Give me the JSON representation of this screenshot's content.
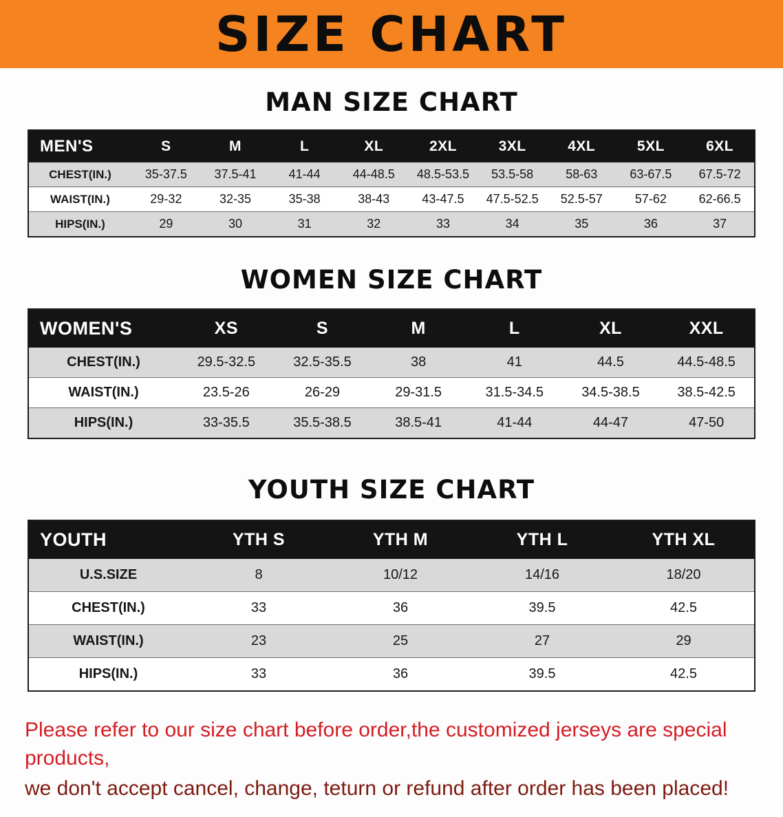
{
  "banner": {
    "title": "SIZE CHART",
    "bg_color": "#f5831f",
    "text_color": "#0d0d0d"
  },
  "men": {
    "heading": "MAN SIZE CHART",
    "header": [
      "MEN'S",
      "S",
      "M",
      "L",
      "XL",
      "2XL",
      "3XL",
      "4XL",
      "5XL",
      "6XL"
    ],
    "rows": [
      [
        "CHEST(IN.)",
        "35-37.5",
        "37.5-41",
        "41-44",
        "44-48.5",
        "48.5-53.5",
        "53.5-58",
        "58-63",
        "63-67.5",
        "67.5-72"
      ],
      [
        "WAIST(IN.)",
        "29-32",
        "32-35",
        "35-38",
        "38-43",
        "43-47.5",
        "47.5-52.5",
        "52.5-57",
        "57-62",
        "62-66.5"
      ],
      [
        "HIPS(IN.)",
        "29",
        "30",
        "31",
        "32",
        "33",
        "34",
        "35",
        "36",
        "37"
      ]
    ]
  },
  "women": {
    "heading": "WOMEN SIZE CHART",
    "header": [
      "WOMEN'S",
      "XS",
      "S",
      "M",
      "L",
      "XL",
      "XXL"
    ],
    "rows": [
      [
        "CHEST(IN.)",
        "29.5-32.5",
        "32.5-35.5",
        "38",
        "41",
        "44.5",
        "44.5-48.5"
      ],
      [
        "WAIST(IN.)",
        "23.5-26",
        "26-29",
        "29-31.5",
        "31.5-34.5",
        "34.5-38.5",
        "38.5-42.5"
      ],
      [
        "HIPS(IN.)",
        "33-35.5",
        "35.5-38.5",
        "38.5-41",
        "41-44",
        "44-47",
        "47-50"
      ]
    ]
  },
  "youth": {
    "heading": "YOUTH SIZE CHART",
    "header": [
      "YOUTH",
      "YTH S",
      "YTH M",
      "YTH L",
      "YTH XL"
    ],
    "rows": [
      [
        "U.S.SIZE",
        "8",
        "10/12",
        "14/16",
        "18/20"
      ],
      [
        "CHEST(IN.)",
        "33",
        "36",
        "39.5",
        "42.5"
      ],
      [
        "WAIST(IN.)",
        "23",
        "25",
        "27",
        "29"
      ],
      [
        "HIPS(IN.)",
        "33",
        "36",
        "39.5",
        "42.5"
      ]
    ]
  },
  "footer": {
    "line1": "Please refer to our size chart before order,the customized jerseys are special products,",
    "line2": "we don't accept cancel, change, teturn or refund after order has been placed!",
    "line1_color": "#d41d24",
    "line2_color": "#7d1a10"
  }
}
